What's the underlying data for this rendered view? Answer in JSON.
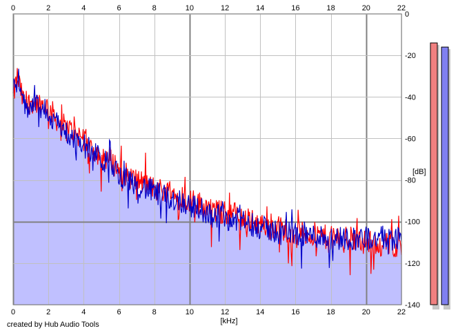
{
  "chart_data": {
    "type": "area",
    "x_axis": {
      "label": "[kHz]",
      "min": 0,
      "max": 22,
      "ticks": [
        0,
        2,
        4,
        6,
        8,
        10,
        12,
        14,
        16,
        18,
        20,
        22
      ],
      "position": "top and bottom"
    },
    "y_axis": {
      "label": "[dB]",
      "min": -140,
      "max": 0,
      "ticks": [
        0,
        -20,
        -40,
        -60,
        -80,
        -100,
        -120,
        -140
      ],
      "position": "right"
    },
    "grid": true,
    "series": [
      {
        "color": "#ff0000",
        "style": "line",
        "x": [
          0,
          0.25,
          0.5,
          0.75,
          1,
          1.5,
          2,
          2.5,
          3,
          3.5,
          4,
          4.5,
          5,
          5.5,
          6,
          6.5,
          7,
          7.5,
          8,
          8.5,
          9,
          9.5,
          10,
          10.5,
          11,
          11.5,
          12,
          12.5,
          13,
          13.5,
          14,
          14.5,
          15,
          15.5,
          16,
          16.5,
          17,
          17.5,
          18,
          18.5,
          19,
          19.5,
          20,
          20.5,
          21,
          21.5,
          22
        ],
        "y": [
          -40,
          -30,
          -40,
          -45,
          -42,
          -43,
          -45,
          -51,
          -55,
          -57,
          -60,
          -65,
          -68,
          -70,
          -75,
          -78,
          -80,
          -82,
          -84,
          -85,
          -86,
          -87,
          -90,
          -91,
          -93,
          -95,
          -96,
          -96,
          -98,
          -100,
          -101,
          -102,
          -103,
          -104,
          -105,
          -106,
          -106,
          -107,
          -108,
          -108,
          -108,
          -109,
          -110,
          -110,
          -111,
          -111,
          -112
        ]
      },
      {
        "color": "#0000c8",
        "style": "line",
        "x": [
          0,
          0.25,
          0.5,
          0.75,
          1,
          1.5,
          2,
          2.5,
          3,
          3.5,
          4,
          4.5,
          5,
          5.5,
          6,
          6.5,
          7,
          7.5,
          8,
          8.5,
          9,
          9.5,
          10,
          10.5,
          11,
          11.5,
          12,
          12.5,
          13,
          13.5,
          14,
          14.5,
          15,
          15.5,
          16,
          16.5,
          17,
          17.5,
          18,
          18.5,
          19,
          19.5,
          20,
          20.5,
          21,
          21.5,
          22
        ],
        "y": [
          -35,
          -28,
          -42,
          -46,
          -44,
          -45,
          -48,
          -53,
          -57,
          -60,
          -63,
          -67,
          -70,
          -73,
          -77,
          -80,
          -82,
          -84,
          -86,
          -88,
          -89,
          -90,
          -92,
          -94,
          -95,
          -97,
          -98,
          -99,
          -100,
          -101,
          -103,
          -104,
          -105,
          -105,
          -106,
          -106,
          -107,
          -107,
          -108,
          -108,
          -108,
          -108,
          -108,
          -108,
          -108,
          -108,
          -108
        ]
      }
    ],
    "area_fill_color": "#c0c0ff",
    "level_meters": [
      {
        "color": "#f08080",
        "value": -14
      },
      {
        "color": "#8080f0",
        "value": -16
      }
    ]
  },
  "footer": {
    "credit": "created by Hub Audio Tools"
  }
}
